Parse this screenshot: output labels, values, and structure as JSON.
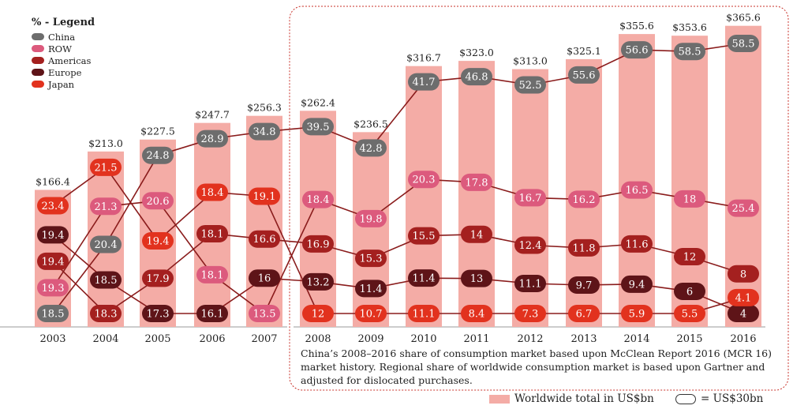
{
  "chart_data": {
    "type": "bar",
    "legend_title": "% - Legend",
    "x": [
      "2003",
      "2004",
      "2005",
      "2006",
      "2007",
      "2008",
      "2009",
      "2010",
      "2011",
      "2012",
      "2013",
      "2014",
      "2015",
      "2016"
    ],
    "totals": [
      166.4,
      213.0,
      227.5,
      247.7,
      256.3,
      262.4,
      236.5,
      316.7,
      323.0,
      313.0,
      325.1,
      355.6,
      353.6,
      365.6
    ],
    "total_labels": [
      "$166.4",
      "$213.0",
      "$227.5",
      "$247.7",
      "$256.3",
      "$262.4",
      "$236.5",
      "$316.7",
      "$323.0",
      "$313.0",
      "$325.1",
      "$355.6",
      "$353.6",
      "$365.6"
    ],
    "series": [
      {
        "name": "China",
        "color": "#6d6d6d",
        "values": [
          18.5,
          20.4,
          24.8,
          28.9,
          34.8,
          39.5,
          42.8,
          41.7,
          46.8,
          52.5,
          55.6,
          56.6,
          58.5,
          58.5
        ]
      },
      {
        "name": "ROW",
        "color": "#dc5a7d",
        "values": [
          19.3,
          21.3,
          20.6,
          18.1,
          13.5,
          18.4,
          19.8,
          20.3,
          17.8,
          16.7,
          16.2,
          16.5,
          18,
          25.4
        ]
      },
      {
        "name": "Americas",
        "color": "#a4201f",
        "values": [
          19.4,
          18.3,
          17.9,
          18.1,
          16.6,
          16.9,
          15.3,
          15.5,
          14,
          12.4,
          11.8,
          11.6,
          12,
          8
        ]
      },
      {
        "name": "Europe",
        "color": "#5e1418",
        "values": [
          19.4,
          18.5,
          17.3,
          16.1,
          16,
          13.2,
          11.4,
          11.4,
          13,
          11.1,
          9.7,
          9.4,
          6,
          4
        ]
      },
      {
        "name": "Japan",
        "color": "#e2321e",
        "values": [
          23.4,
          21.5,
          19.4,
          18.4,
          19.1,
          12,
          10.7,
          11.1,
          8.4,
          7.3,
          6.7,
          5.9,
          5.5,
          4.1
        ]
      }
    ],
    "bar_color": "#f4aca6",
    "line_color": "#8a1c1c",
    "ylabel": "",
    "xlabel": ""
  },
  "note": "China’s 2008–2016 share of consumption market based upon McClean Report 2016 (MCR 16) market history. Regional share of worldwide consumption market is based upon Gartner and adjusted for dislocated purchases.",
  "bottom_legend": {
    "bar_label": "Worldwide total in US$bn",
    "pill_label": "= US$30bn"
  }
}
